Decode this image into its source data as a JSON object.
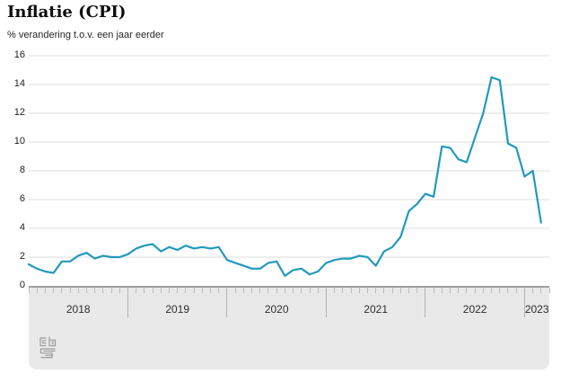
{
  "header": {
    "title": "Inflatie (CPI)",
    "subtitle": "% verandering t.o.v. een jaar eerder"
  },
  "chart_data": {
    "type": "line",
    "title": "Inflatie (CPI)",
    "subtitle": "% verandering t.o.v. een jaar eerder",
    "unit": "%",
    "grid": true,
    "legend_position": "none",
    "ylim": [
      0,
      16
    ],
    "y_ticks": [
      0,
      2,
      4,
      6,
      8,
      10,
      12,
      14,
      16
    ],
    "x_year_labels": [
      "2018",
      "2019",
      "2020",
      "2021",
      "2022",
      "2023"
    ],
    "x_minor_ticks": "monthly",
    "x_start_month": "2018-01",
    "x_end_month": "2023-03",
    "line_color": "#2299bd",
    "series": [
      {
        "name": "Inflatie (CPI)",
        "x_monthly_from": "2018-01",
        "values": [
          1.5,
          1.2,
          1.0,
          0.9,
          1.7,
          1.7,
          2.1,
          2.3,
          1.9,
          2.1,
          2.0,
          2.0,
          2.2,
          2.6,
          2.8,
          2.9,
          2.4,
          2.7,
          2.5,
          2.8,
          2.6,
          2.7,
          2.6,
          2.7,
          1.8,
          1.6,
          1.4,
          1.2,
          1.2,
          1.6,
          1.7,
          0.7,
          1.1,
          1.2,
          0.8,
          1.0,
          1.6,
          1.8,
          1.9,
          1.9,
          2.1,
          2.0,
          1.4,
          2.4,
          2.7,
          3.4,
          5.2,
          5.7,
          6.4,
          6.2,
          9.7,
          9.6,
          8.8,
          8.6,
          10.3,
          12.0,
          14.5,
          14.3,
          9.9,
          9.6,
          7.6,
          8.0,
          4.4
        ]
      }
    ]
  },
  "colors": {
    "line": "#2299bd",
    "gridline": "#dcdcdc",
    "band_background": "#e9e9e9",
    "band_border": "#a0a0a0",
    "tick": "#bcbcbc",
    "separator": "#b2b2b2",
    "text": "#1f1f1f"
  },
  "footer": {
    "logo": "cbs-logo"
  }
}
